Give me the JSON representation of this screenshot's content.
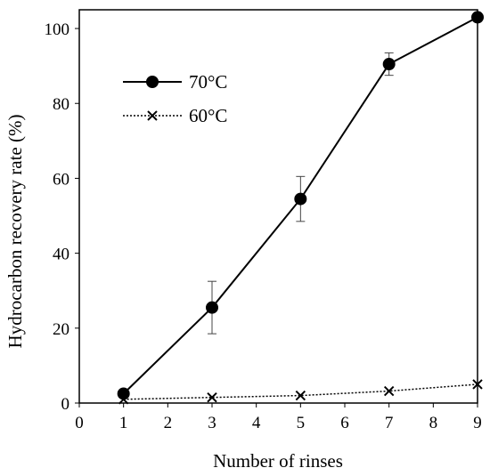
{
  "chart_data": {
    "type": "line",
    "xlabel": "Number of rinses",
    "ylabel": "Hydrocarbon recovery rate (%)",
    "xlim": [
      0,
      9
    ],
    "ylim": [
      0,
      105
    ],
    "xticks": [
      0,
      1,
      2,
      3,
      4,
      5,
      6,
      7,
      8,
      9
    ],
    "yticks": [
      0,
      20,
      40,
      60,
      80,
      100
    ],
    "grid": false,
    "legend_position": "top-left",
    "series": [
      {
        "name": "70°C",
        "marker": "circle",
        "line_style": "solid",
        "color": "#000000",
        "x": [
          1,
          3,
          5,
          7,
          9
        ],
        "y": [
          2.5,
          25.5,
          54.5,
          90.5,
          103
        ],
        "error": [
          0,
          7,
          6,
          3,
          0
        ]
      },
      {
        "name": "60°C",
        "marker": "x",
        "line_style": "dotted",
        "color": "#000000",
        "x": [
          1,
          3,
          5,
          7,
          9
        ],
        "y": [
          1,
          1.5,
          2,
          3.2,
          5
        ],
        "error": [
          0,
          0,
          0,
          0,
          0
        ]
      }
    ]
  }
}
